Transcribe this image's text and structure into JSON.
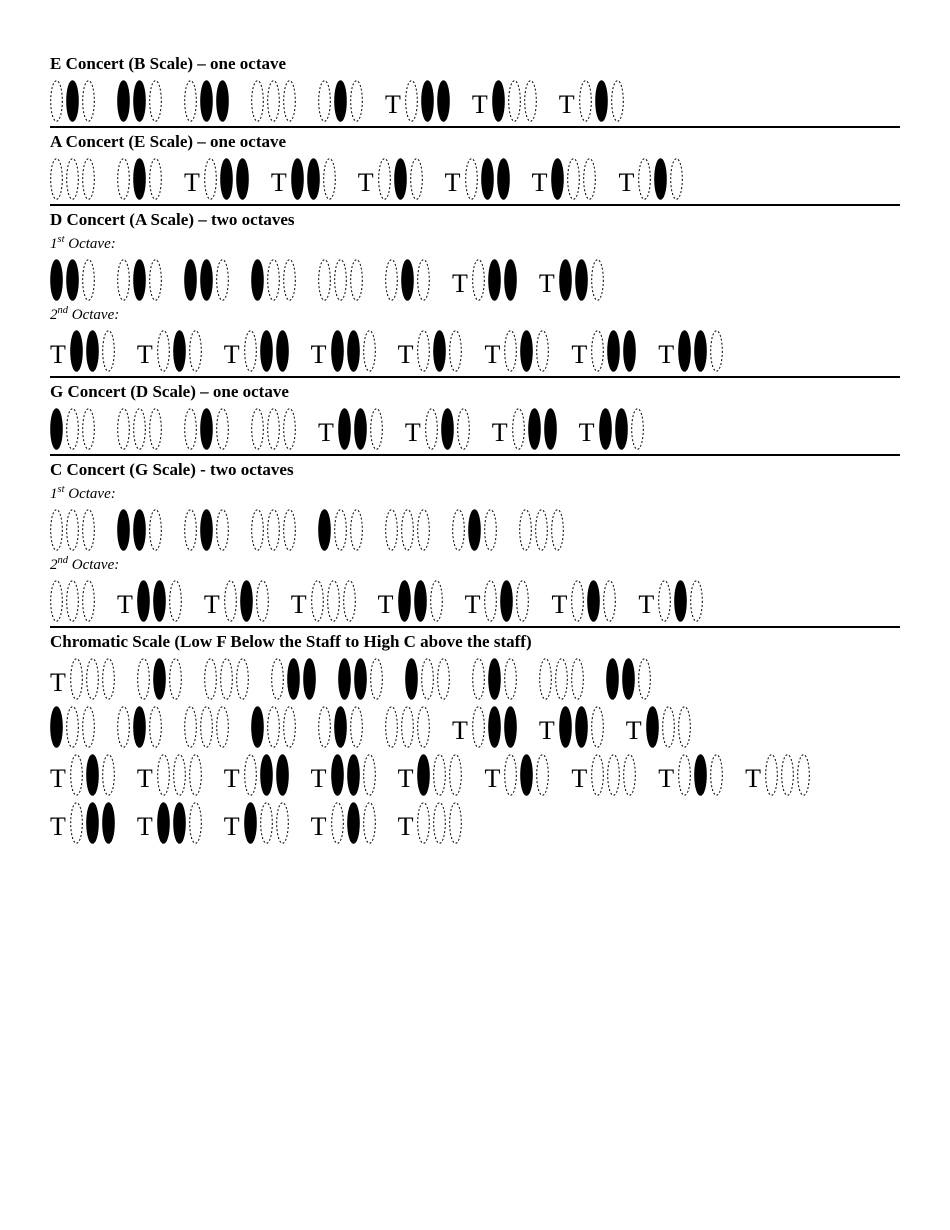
{
  "colors": {
    "ink": "#000000",
    "bg": "#ffffff"
  },
  "valve_style": {
    "width": 13,
    "height": 42,
    "rx": 6.5,
    "ry": 21,
    "stroke_solid": "#000000",
    "stroke_dashed": "#000000",
    "dash": "2 2",
    "stroke_width": 1,
    "fill_pressed": "#000000",
    "fill_open": "none"
  },
  "t_label": "T",
  "sections": [
    {
      "title": "E Concert (B Scale) – one octave",
      "rows": [
        {
          "fingerings": [
            {
              "t": false,
              "v": [
                0,
                1,
                0
              ]
            },
            {
              "t": false,
              "v": [
                1,
                1,
                0
              ]
            },
            {
              "t": false,
              "v": [
                0,
                1,
                1
              ]
            },
            {
              "t": false,
              "v": [
                0,
                0,
                0
              ]
            },
            {
              "t": false,
              "v": [
                0,
                1,
                0
              ]
            },
            {
              "t": true,
              "v": [
                0,
                1,
                1
              ]
            },
            {
              "t": true,
              "v": [
                1,
                0,
                0
              ]
            },
            {
              "t": true,
              "v": [
                0,
                1,
                0
              ]
            }
          ]
        }
      ],
      "divider": true
    },
    {
      "title": "A Concert (E Scale) – one octave",
      "rows": [
        {
          "fingerings": [
            {
              "t": false,
              "v": [
                0,
                0,
                0
              ]
            },
            {
              "t": false,
              "v": [
                0,
                1,
                0
              ]
            },
            {
              "t": true,
              "v": [
                0,
                1,
                1
              ]
            },
            {
              "t": true,
              "v": [
                1,
                1,
                0
              ]
            },
            {
              "t": true,
              "v": [
                0,
                1,
                0
              ]
            },
            {
              "t": true,
              "v": [
                0,
                1,
                1
              ]
            },
            {
              "t": true,
              "v": [
                1,
                0,
                0
              ]
            },
            {
              "t": true,
              "v": [
                0,
                1,
                0
              ]
            }
          ]
        }
      ],
      "divider": true
    },
    {
      "title": "D Concert (A Scale) – two octaves",
      "octave1_label": "1<sup>st</sup> Octave:",
      "octave2_label": "2<sup>nd</sup> Octave:",
      "rows": [
        {
          "label": "o1",
          "fingerings": [
            {
              "t": false,
              "v": [
                1,
                1,
                0
              ]
            },
            {
              "t": false,
              "v": [
                0,
                1,
                0
              ]
            },
            {
              "t": false,
              "v": [
                1,
                1,
                0
              ]
            },
            {
              "t": false,
              "v": [
                1,
                0,
                0
              ]
            },
            {
              "t": false,
              "v": [
                0,
                0,
                0
              ]
            },
            {
              "t": false,
              "v": [
                0,
                1,
                0
              ]
            },
            {
              "t": true,
              "v": [
                0,
                1,
                1
              ]
            },
            {
              "t": true,
              "v": [
                1,
                1,
                0
              ]
            }
          ]
        },
        {
          "label": "o2",
          "fingerings": [
            {
              "t": true,
              "v": [
                1,
                1,
                0
              ]
            },
            {
              "t": true,
              "v": [
                0,
                1,
                0
              ]
            },
            {
              "t": true,
              "v": [
                0,
                1,
                1
              ]
            },
            {
              "t": true,
              "v": [
                1,
                1,
                0
              ]
            },
            {
              "t": true,
              "v": [
                0,
                1,
                0
              ]
            },
            {
              "t": true,
              "v": [
                0,
                1,
                0
              ]
            },
            {
              "t": true,
              "v": [
                0,
                1,
                1
              ]
            },
            {
              "t": true,
              "v": [
                1,
                1,
                0
              ]
            }
          ]
        }
      ],
      "divider": true
    },
    {
      "title": "G Concert (D Scale) – one octave",
      "rows": [
        {
          "fingerings": [
            {
              "t": false,
              "v": [
                1,
                0,
                0
              ]
            },
            {
              "t": false,
              "v": [
                0,
                0,
                0
              ]
            },
            {
              "t": false,
              "v": [
                0,
                1,
                0
              ]
            },
            {
              "t": false,
              "v": [
                0,
                0,
                0
              ]
            },
            {
              "t": true,
              "v": [
                1,
                1,
                0
              ]
            },
            {
              "t": true,
              "v": [
                0,
                1,
                0
              ]
            },
            {
              "t": true,
              "v": [
                0,
                1,
                1
              ]
            },
            {
              "t": true,
              "v": [
                1,
                1,
                0
              ]
            }
          ]
        }
      ],
      "divider": true
    },
    {
      "title": "C Concert (G Scale) - two octaves",
      "octave1_label": "1<sup>st</sup> Octave:",
      "octave2_label": "2<sup>nd</sup> Octave:",
      "rows": [
        {
          "label": "o1",
          "fingerings": [
            {
              "t": false,
              "v": [
                0,
                0,
                0
              ]
            },
            {
              "t": false,
              "v": [
                1,
                1,
                0
              ]
            },
            {
              "t": false,
              "v": [
                0,
                1,
                0
              ]
            },
            {
              "t": false,
              "v": [
                0,
                0,
                0
              ]
            },
            {
              "t": false,
              "v": [
                1,
                0,
                0
              ]
            },
            {
              "t": false,
              "v": [
                0,
                0,
                0
              ]
            },
            {
              "t": false,
              "v": [
                0,
                1,
                0
              ]
            },
            {
              "t": false,
              "v": [
                0,
                0,
                0
              ]
            }
          ]
        },
        {
          "label": "o2",
          "fingerings": [
            {
              "t": false,
              "v": [
                0,
                0,
                0
              ]
            },
            {
              "t": true,
              "v": [
                1,
                1,
                0
              ]
            },
            {
              "t": true,
              "v": [
                0,
                1,
                0
              ]
            },
            {
              "t": true,
              "v": [
                0,
                0,
                0
              ]
            },
            {
              "t": true,
              "v": [
                1,
                1,
                0
              ]
            },
            {
              "t": true,
              "v": [
                0,
                1,
                0
              ]
            },
            {
              "t": true,
              "v": [
                0,
                1,
                0
              ]
            },
            {
              "t": true,
              "v": [
                0,
                1,
                0
              ]
            }
          ]
        }
      ],
      "divider": true
    },
    {
      "title": "Chromatic Scale (Low F Below the Staff to High C above the staff)",
      "rows": [
        {
          "fingerings": [
            {
              "t": true,
              "v": [
                0,
                0,
                0
              ]
            },
            {
              "t": false,
              "v": [
                0,
                1,
                0
              ]
            },
            {
              "t": false,
              "v": [
                0,
                0,
                0
              ]
            },
            {
              "t": false,
              "v": [
                0,
                1,
                1
              ]
            },
            {
              "t": false,
              "v": [
                1,
                1,
                0
              ]
            },
            {
              "t": false,
              "v": [
                1,
                0,
                0
              ]
            },
            {
              "t": false,
              "v": [
                0,
                1,
                0
              ]
            },
            {
              "t": false,
              "v": [
                0,
                0,
                0
              ]
            },
            {
              "t": false,
              "v": [
                1,
                1,
                0
              ]
            }
          ]
        },
        {
          "fingerings": [
            {
              "t": false,
              "v": [
                1,
                0,
                0
              ]
            },
            {
              "t": false,
              "v": [
                0,
                1,
                0
              ]
            },
            {
              "t": false,
              "v": [
                0,
                0,
                0
              ]
            },
            {
              "t": false,
              "v": [
                1,
                0,
                0
              ]
            },
            {
              "t": false,
              "v": [
                0,
                1,
                0
              ]
            },
            {
              "t": false,
              "v": [
                0,
                0,
                0
              ]
            },
            {
              "t": true,
              "v": [
                0,
                1,
                1
              ]
            },
            {
              "t": true,
              "v": [
                1,
                1,
                0
              ]
            },
            {
              "t": true,
              "v": [
                1,
                0,
                0
              ]
            }
          ]
        },
        {
          "fingerings": [
            {
              "t": true,
              "v": [
                0,
                1,
                0
              ]
            },
            {
              "t": true,
              "v": [
                0,
                0,
                0
              ]
            },
            {
              "t": true,
              "v": [
                0,
                1,
                1
              ]
            },
            {
              "t": true,
              "v": [
                1,
                1,
                0
              ]
            },
            {
              "t": true,
              "v": [
                1,
                0,
                0
              ]
            },
            {
              "t": true,
              "v": [
                0,
                1,
                0
              ]
            },
            {
              "t": true,
              "v": [
                0,
                0,
                0
              ]
            },
            {
              "t": true,
              "v": [
                0,
                1,
                0
              ]
            },
            {
              "t": true,
              "v": [
                0,
                0,
                0
              ]
            }
          ]
        },
        {
          "fingerings": [
            {
              "t": true,
              "v": [
                0,
                1,
                1
              ]
            },
            {
              "t": true,
              "v": [
                1,
                1,
                0
              ]
            },
            {
              "t": true,
              "v": [
                1,
                0,
                0
              ]
            },
            {
              "t": true,
              "v": [
                0,
                1,
                0
              ]
            },
            {
              "t": true,
              "v": [
                0,
                0,
                0
              ]
            }
          ]
        }
      ],
      "divider": false
    }
  ]
}
